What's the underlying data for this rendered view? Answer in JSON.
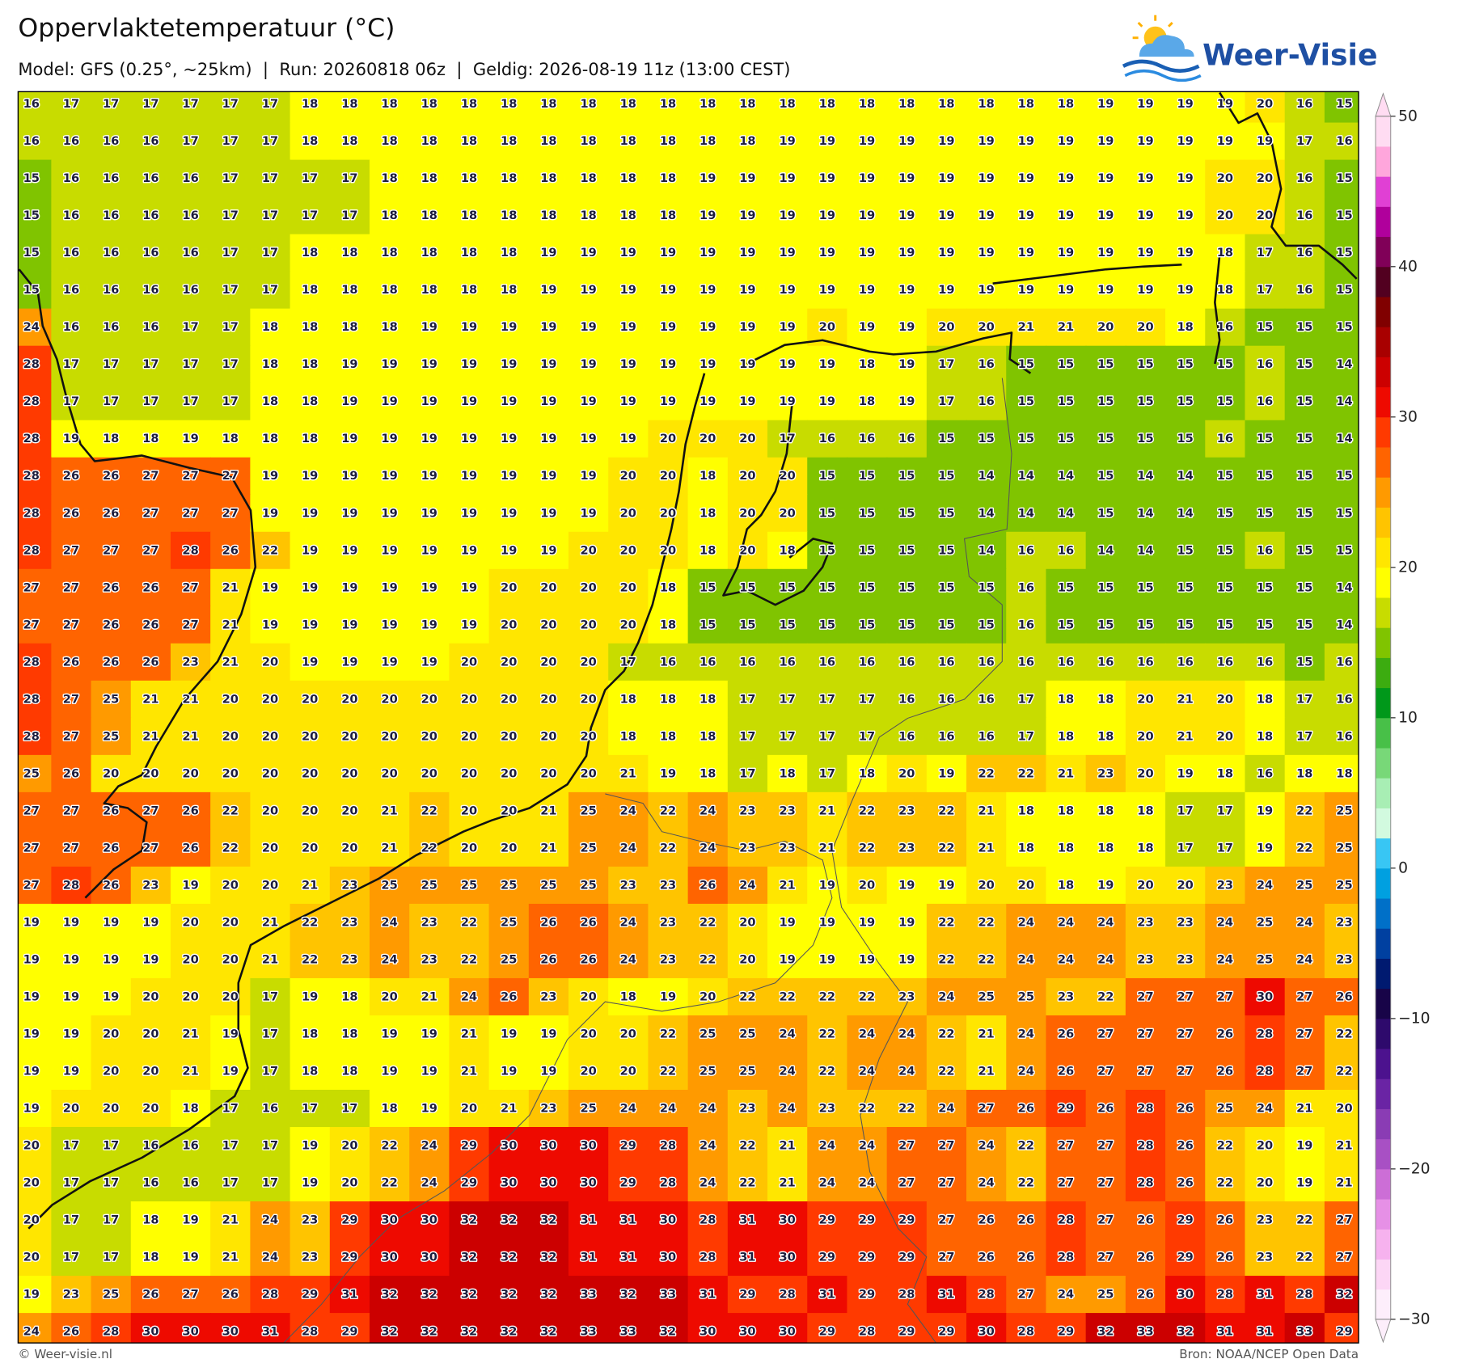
{
  "header": {
    "title": "Oppervlaktetemperatuur (°C)",
    "subtitle": "Model: GFS (0.25°, ~25km)  |  Run: 20260818 06z  |  Geldig: 2026-08-19 11z (13:00 CEST)",
    "logo": "Weer-Visie"
  },
  "map": {
    "rows": [
      [
        16,
        17,
        17,
        17,
        17,
        17,
        17,
        18,
        18,
        18,
        18,
        18,
        18,
        18,
        18,
        18,
        18,
        18,
        18,
        18,
        18,
        18,
        18,
        18,
        18,
        18,
        18,
        19,
        19,
        19,
        19,
        20,
        16,
        15
      ],
      [
        16,
        16,
        16,
        16,
        17,
        17,
        17,
        18,
        18,
        18,
        18,
        18,
        18,
        18,
        18,
        18,
        18,
        18,
        18,
        19,
        19,
        19,
        19,
        19,
        19,
        19,
        19,
        19,
        19,
        19,
        19,
        19,
        17,
        16
      ],
      [
        15,
        16,
        16,
        16,
        16,
        17,
        17,
        17,
        17,
        18,
        18,
        18,
        18,
        18,
        18,
        18,
        18,
        19,
        19,
        19,
        19,
        19,
        19,
        19,
        19,
        19,
        19,
        19,
        19,
        19,
        20,
        20,
        16,
        15
      ],
      [
        15,
        16,
        16,
        16,
        16,
        17,
        17,
        17,
        17,
        18,
        18,
        18,
        18,
        18,
        18,
        18,
        18,
        19,
        19,
        19,
        19,
        19,
        19,
        19,
        19,
        19,
        19,
        19,
        19,
        19,
        20,
        20,
        16,
        15
      ],
      [
        15,
        16,
        16,
        16,
        16,
        17,
        17,
        18,
        18,
        18,
        18,
        18,
        18,
        19,
        19,
        19,
        19,
        19,
        19,
        19,
        19,
        19,
        19,
        19,
        19,
        19,
        19,
        19,
        19,
        19,
        18,
        17,
        16,
        15
      ],
      [
        15,
        16,
        16,
        16,
        16,
        17,
        17,
        18,
        18,
        18,
        18,
        18,
        18,
        19,
        19,
        19,
        19,
        19,
        19,
        19,
        19,
        19,
        19,
        19,
        19,
        19,
        19,
        19,
        19,
        19,
        18,
        17,
        16,
        15
      ],
      [
        24,
        16,
        16,
        16,
        17,
        17,
        18,
        18,
        18,
        18,
        19,
        19,
        19,
        19,
        19,
        19,
        19,
        19,
        19,
        19,
        20,
        19,
        19,
        20,
        20,
        21,
        21,
        20,
        20,
        18,
        16,
        15,
        15,
        15
      ],
      [
        28,
        17,
        17,
        17,
        17,
        17,
        18,
        18,
        19,
        19,
        19,
        19,
        19,
        19,
        19,
        19,
        19,
        19,
        19,
        19,
        19,
        18,
        19,
        17,
        16,
        15,
        15,
        15,
        15,
        15,
        15,
        16,
        15,
        14
      ],
      [
        28,
        17,
        17,
        17,
        17,
        17,
        18,
        18,
        19,
        19,
        19,
        19,
        19,
        19,
        19,
        19,
        19,
        19,
        19,
        19,
        19,
        18,
        19,
        17,
        16,
        15,
        15,
        15,
        15,
        15,
        15,
        16,
        15,
        14
      ],
      [
        28,
        19,
        18,
        18,
        19,
        18,
        18,
        18,
        19,
        19,
        19,
        19,
        19,
        19,
        19,
        19,
        20,
        20,
        20,
        17,
        16,
        16,
        16,
        15,
        15,
        15,
        15,
        15,
        15,
        15,
        16,
        15,
        15,
        14
      ],
      [
        28,
        26,
        26,
        27,
        27,
        27,
        19,
        19,
        19,
        19,
        19,
        19,
        19,
        19,
        19,
        20,
        20,
        18,
        20,
        20,
        15,
        15,
        15,
        15,
        14,
        14,
        14,
        15,
        14,
        14,
        15,
        15,
        15,
        15
      ],
      [
        28,
        26,
        26,
        27,
        27,
        27,
        19,
        19,
        19,
        19,
        19,
        19,
        19,
        19,
        19,
        20,
        20,
        18,
        20,
        20,
        15,
        15,
        15,
        15,
        14,
        14,
        14,
        15,
        14,
        14,
        15,
        15,
        15,
        15
      ],
      [
        28,
        27,
        27,
        27,
        28,
        26,
        22,
        19,
        19,
        19,
        19,
        19,
        19,
        19,
        20,
        20,
        20,
        18,
        20,
        18,
        15,
        15,
        15,
        15,
        14,
        16,
        16,
        14,
        14,
        15,
        15,
        16,
        15,
        15
      ],
      [
        27,
        27,
        26,
        26,
        27,
        21,
        19,
        19,
        19,
        19,
        19,
        19,
        20,
        20,
        20,
        20,
        18,
        15,
        15,
        15,
        15,
        15,
        15,
        15,
        15,
        16,
        15,
        15,
        15,
        15,
        15,
        15,
        15,
        14
      ],
      [
        27,
        27,
        26,
        26,
        27,
        21,
        19,
        19,
        19,
        19,
        19,
        19,
        20,
        20,
        20,
        20,
        18,
        15,
        15,
        15,
        15,
        15,
        15,
        15,
        15,
        16,
        15,
        15,
        15,
        15,
        15,
        15,
        15,
        14
      ],
      [
        28,
        26,
        26,
        26,
        23,
        21,
        20,
        19,
        19,
        19,
        19,
        20,
        20,
        20,
        20,
        17,
        16,
        16,
        16,
        16,
        16,
        16,
        16,
        16,
        16,
        16,
        16,
        16,
        16,
        16,
        16,
        16,
        15,
        16
      ],
      [
        28,
        27,
        25,
        21,
        21,
        20,
        20,
        20,
        20,
        20,
        20,
        20,
        20,
        20,
        20,
        18,
        18,
        18,
        17,
        17,
        17,
        17,
        16,
        16,
        16,
        17,
        18,
        18,
        20,
        21,
        20,
        18,
        17,
        16
      ],
      [
        28,
        27,
        25,
        21,
        21,
        20,
        20,
        20,
        20,
        20,
        20,
        20,
        20,
        20,
        20,
        18,
        18,
        18,
        17,
        17,
        17,
        17,
        16,
        16,
        16,
        17,
        18,
        18,
        20,
        21,
        20,
        18,
        17,
        16
      ],
      [
        25,
        26,
        20,
        20,
        20,
        20,
        20,
        20,
        20,
        20,
        20,
        20,
        20,
        20,
        20,
        21,
        19,
        18,
        17,
        18,
        17,
        18,
        20,
        19,
        22,
        22,
        21,
        23,
        20,
        19,
        18,
        16,
        18,
        18
      ],
      [
        27,
        27,
        26,
        27,
        26,
        22,
        20,
        20,
        20,
        21,
        22,
        20,
        20,
        21,
        25,
        24,
        22,
        24,
        23,
        23,
        21,
        22,
        23,
        22,
        21,
        18,
        18,
        18,
        18,
        17,
        17,
        19,
        22,
        25
      ],
      [
        27,
        27,
        26,
        27,
        26,
        22,
        20,
        20,
        20,
        21,
        22,
        20,
        20,
        21,
        25,
        24,
        22,
        24,
        23,
        23,
        21,
        22,
        23,
        22,
        21,
        18,
        18,
        18,
        18,
        17,
        17,
        19,
        22,
        25
      ],
      [
        27,
        28,
        26,
        23,
        19,
        20,
        20,
        21,
        23,
        25,
        25,
        25,
        25,
        25,
        25,
        23,
        23,
        26,
        24,
        21,
        19,
        20,
        19,
        19,
        20,
        20,
        18,
        19,
        20,
        20,
        23,
        24,
        25,
        25
      ],
      [
        19,
        19,
        19,
        19,
        20,
        20,
        21,
        22,
        23,
        24,
        23,
        22,
        25,
        26,
        26,
        24,
        23,
        22,
        20,
        19,
        19,
        19,
        19,
        22,
        22,
        24,
        24,
        24,
        23,
        23,
        24,
        25,
        24,
        23
      ],
      [
        19,
        19,
        19,
        19,
        20,
        20,
        21,
        22,
        23,
        24,
        23,
        22,
        25,
        26,
        26,
        24,
        23,
        22,
        20,
        19,
        19,
        19,
        19,
        22,
        22,
        24,
        24,
        24,
        23,
        23,
        24,
        25,
        24,
        23
      ],
      [
        19,
        19,
        19,
        20,
        20,
        20,
        17,
        19,
        18,
        20,
        21,
        24,
        26,
        23,
        20,
        18,
        19,
        20,
        22,
        22,
        22,
        22,
        23,
        24,
        25,
        25,
        23,
        22,
        27,
        27,
        27,
        30,
        27,
        26
      ],
      [
        19,
        19,
        20,
        20,
        21,
        19,
        17,
        18,
        18,
        19,
        19,
        21,
        19,
        19,
        20,
        20,
        22,
        25,
        25,
        24,
        22,
        24,
        24,
        22,
        21,
        24,
        26,
        27,
        27,
        27,
        26,
        28,
        27,
        22
      ],
      [
        19,
        19,
        20,
        20,
        21,
        19,
        17,
        18,
        18,
        19,
        19,
        21,
        19,
        19,
        20,
        20,
        22,
        25,
        25,
        24,
        22,
        24,
        24,
        22,
        21,
        24,
        26,
        27,
        27,
        27,
        26,
        28,
        27,
        22
      ],
      [
        19,
        20,
        20,
        20,
        18,
        17,
        16,
        17,
        17,
        18,
        19,
        20,
        21,
        23,
        25,
        24,
        24,
        24,
        23,
        24,
        23,
        22,
        22,
        24,
        27,
        26,
        29,
        26,
        28,
        26,
        25,
        24,
        21,
        20
      ],
      [
        20,
        17,
        17,
        16,
        16,
        17,
        17,
        19,
        20,
        22,
        24,
        29,
        30,
        30,
        30,
        29,
        28,
        24,
        22,
        21,
        24,
        24,
        27,
        27,
        24,
        22,
        27,
        27,
        28,
        26,
        22,
        20,
        19,
        21
      ],
      [
        20,
        17,
        17,
        16,
        16,
        17,
        17,
        19,
        20,
        22,
        24,
        29,
        30,
        30,
        30,
        29,
        28,
        24,
        22,
        21,
        24,
        24,
        27,
        27,
        24,
        22,
        27,
        27,
        28,
        26,
        22,
        20,
        19,
        21
      ],
      [
        20,
        17,
        17,
        18,
        19,
        21,
        24,
        23,
        29,
        30,
        30,
        32,
        32,
        32,
        31,
        31,
        30,
        28,
        31,
        30,
        29,
        29,
        29,
        27,
        26,
        26,
        28,
        27,
        26,
        29,
        26,
        23,
        22,
        27
      ],
      [
        20,
        17,
        17,
        18,
        19,
        21,
        24,
        23,
        29,
        30,
        30,
        32,
        32,
        32,
        31,
        31,
        30,
        28,
        31,
        30,
        29,
        29,
        29,
        27,
        26,
        26,
        28,
        27,
        26,
        29,
        26,
        23,
        22,
        27
      ],
      [
        19,
        23,
        25,
        26,
        27,
        26,
        28,
        29,
        31,
        32,
        32,
        32,
        32,
        32,
        33,
        32,
        33,
        31,
        29,
        28,
        31,
        29,
        28,
        31,
        28,
        27,
        24,
        25,
        26,
        30,
        28,
        31,
        28,
        32
      ],
      [
        24,
        26,
        28,
        30,
        30,
        30,
        31,
        28,
        29,
        32,
        32,
        32,
        32,
        32,
        33,
        33,
        32,
        30,
        30,
        30,
        29,
        28,
        29,
        29,
        30,
        28,
        29,
        32,
        33,
        32,
        31,
        31,
        33,
        29
      ]
    ]
  },
  "colorbar": {
    "lim": [
      -30,
      50
    ],
    "ticks": [
      {
        "value": -30,
        "label": "−30"
      },
      {
        "value": -20,
        "label": "−20"
      },
      {
        "value": -10,
        "label": "−10"
      },
      0,
      10,
      20,
      30,
      40,
      50
    ],
    "colors": [
      "#fdeefb",
      "#fcd6f5",
      "#f6b2ee",
      "#e690e6",
      "#cc6ed6",
      "#a850c4",
      "#8a3cb4",
      "#6a24a4",
      "#4c128e",
      "#2e0a6c",
      "#180448",
      "#001a70",
      "#0040a0",
      "#0070c8",
      "#00a0e0",
      "#38c6f4",
      "#d2fadf",
      "#a8eeb4",
      "#78d878",
      "#48c048",
      "#00981a",
      "#3cac10",
      "#80c400",
      "#c8dc00",
      "#ffff00",
      "#ffe600",
      "#ffc400",
      "#ff9a00",
      "#ff6400",
      "#ff3a00",
      "#ee0a00",
      "#cc0000",
      "#a80000",
      "#800000",
      "#520020",
      "#800058",
      "#b0009c",
      "#e040d4",
      "#ffa6dc",
      "#ffdcf2"
    ]
  },
  "footer": {
    "left": "© Weer-visie.nl",
    "right": "Bron: NOAA/NCEP Open Data"
  }
}
